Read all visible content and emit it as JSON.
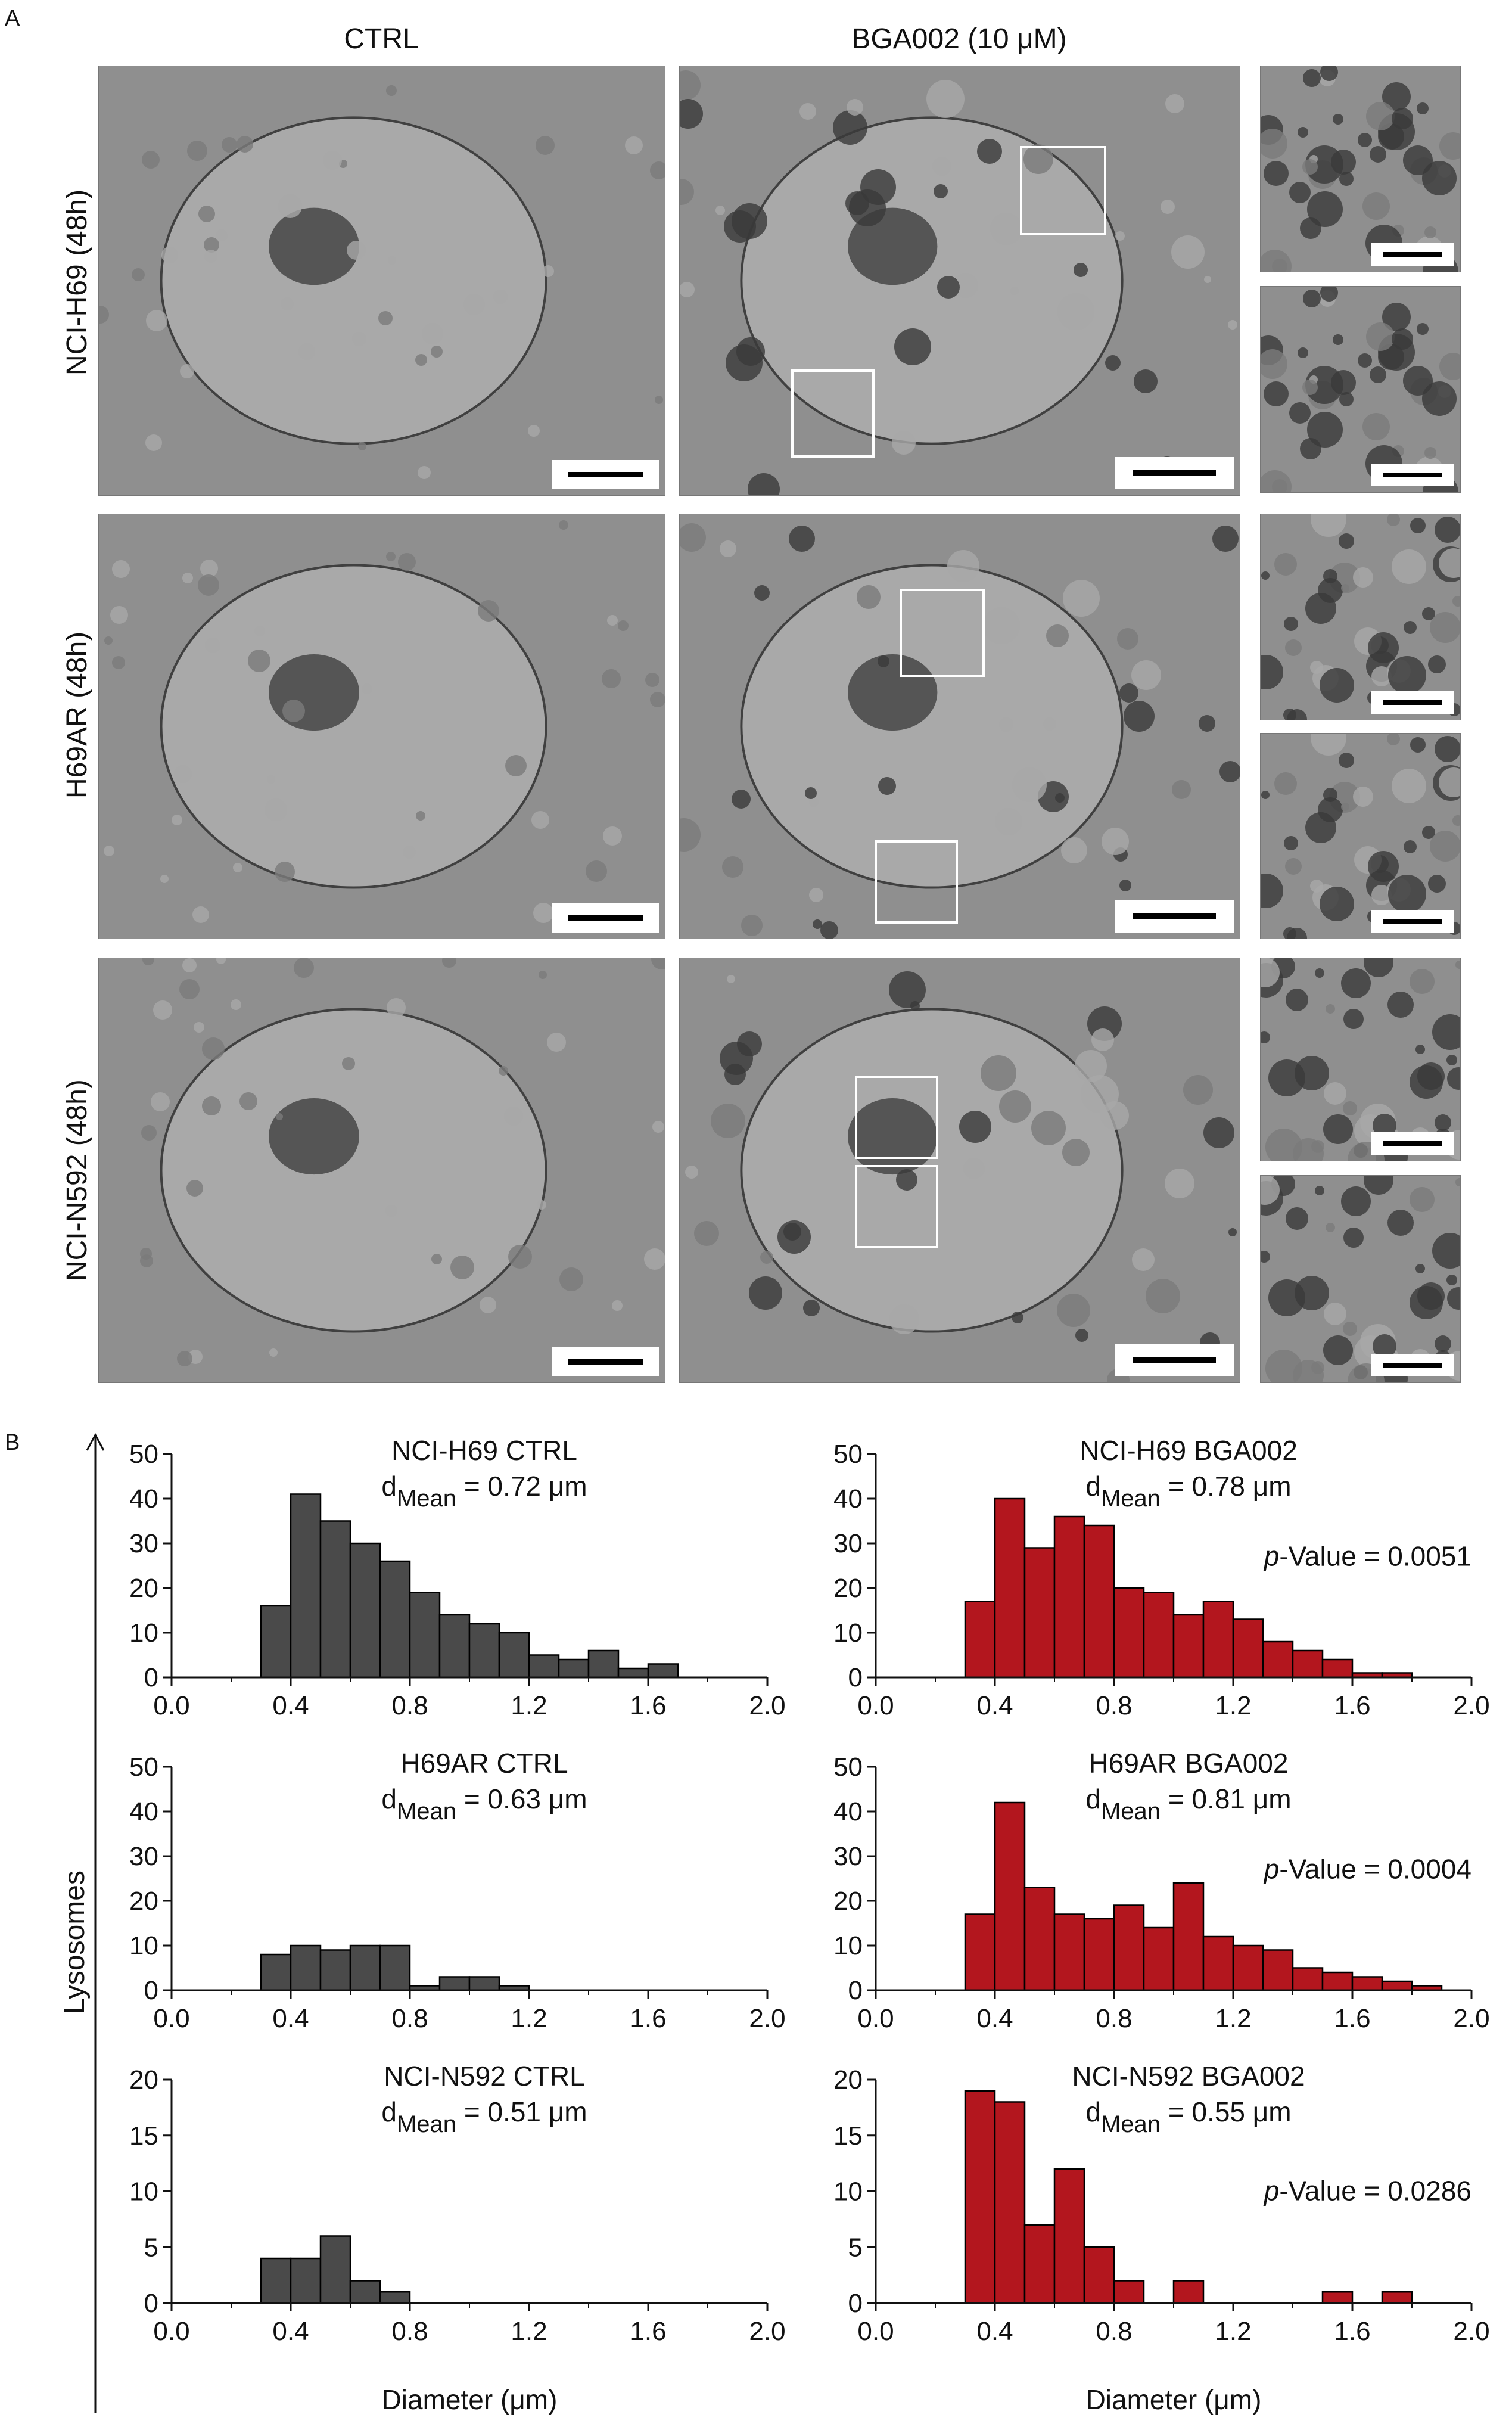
{
  "figure": {
    "panel_a_label": "A",
    "panel_b_label": "B",
    "column_labels": [
      "CTRL",
      "BGA002 (10 μM)"
    ],
    "row_labels": [
      "NCI-H69 (48h)",
      "H69AR (48h)",
      "NCI-N592 (48h)"
    ],
    "y_axis_label": "Lysosomes",
    "x_axis_label": "Diameter (μm)"
  },
  "colors": {
    "ctrl_bar": "#4a4a4a",
    "bga_bar": "#b3161e",
    "em_background": "#8f8f8f"
  },
  "chart_data": [
    {
      "type": "bar",
      "title": "NCI-H69 CTRL",
      "mean_label": "d",
      "mean_sub": "Mean",
      "mean_value": "= 0.72 μm",
      "pvalue": "",
      "bin_edges": [
        0.3,
        0.4,
        0.5,
        0.6,
        0.7,
        0.8,
        0.9,
        1.0,
        1.1,
        1.2,
        1.3,
        1.4,
        1.5,
        1.6,
        1.7
      ],
      "values": [
        16,
        41,
        35,
        30,
        26,
        19,
        14,
        12,
        10,
        5,
        4,
        6,
        2,
        3
      ],
      "xlim": [
        0.0,
        2.0
      ],
      "ylim": [
        0,
        50
      ],
      "xticks": [
        "0.0",
        "0.4",
        "0.8",
        "1.2",
        "1.6",
        "2.0"
      ],
      "yticks": [
        "0",
        "10",
        "20",
        "30",
        "40",
        "50"
      ],
      "color": "ctrl"
    },
    {
      "type": "bar",
      "title": "NCI-H69 BGA002",
      "mean_label": "d",
      "mean_sub": "Mean",
      "mean_value": "= 0.78 μm",
      "pvalue": "-Value = 0.0051",
      "bin_edges": [
        0.3,
        0.4,
        0.5,
        0.6,
        0.7,
        0.8,
        0.9,
        1.0,
        1.1,
        1.2,
        1.3,
        1.4,
        1.5,
        1.6,
        1.7,
        1.8
      ],
      "values": [
        17,
        40,
        29,
        36,
        34,
        20,
        19,
        14,
        17,
        13,
        8,
        6,
        4,
        1,
        1
      ],
      "xlim": [
        0.0,
        2.0
      ],
      "ylim": [
        0,
        50
      ],
      "xticks": [
        "0.0",
        "0.4",
        "0.8",
        "1.2",
        "1.6",
        "2.0"
      ],
      "yticks": [
        "0",
        "10",
        "20",
        "30",
        "40",
        "50"
      ],
      "color": "bga"
    },
    {
      "type": "bar",
      "title": "H69AR CTRL",
      "mean_label": "d",
      "mean_sub": "Mean",
      "mean_value": "= 0.63 μm",
      "pvalue": "",
      "bin_edges": [
        0.3,
        0.4,
        0.5,
        0.6,
        0.7,
        0.8,
        0.9,
        1.0,
        1.1,
        1.2
      ],
      "values": [
        8,
        10,
        9,
        10,
        10,
        1,
        3,
        3,
        1
      ],
      "xlim": [
        0.0,
        2.0
      ],
      "ylim": [
        0,
        50
      ],
      "xticks": [
        "0.0",
        "0.4",
        "0.8",
        "1.2",
        "1.6",
        "2.0"
      ],
      "yticks": [
        "0",
        "10",
        "20",
        "30",
        "40",
        "50"
      ],
      "color": "ctrl"
    },
    {
      "type": "bar",
      "title": "H69AR BGA002",
      "mean_label": "d",
      "mean_sub": "Mean",
      "mean_value": "= 0.81 μm",
      "pvalue": "-Value = 0.0004",
      "bin_edges": [
        0.3,
        0.4,
        0.5,
        0.6,
        0.7,
        0.8,
        0.9,
        1.0,
        1.1,
        1.2,
        1.3,
        1.4,
        1.5,
        1.6,
        1.7,
        1.8,
        1.9
      ],
      "values": [
        17,
        42,
        23,
        17,
        16,
        19,
        14,
        24,
        12,
        10,
        9,
        5,
        4,
        3,
        2,
        1
      ],
      "xlim": [
        0.0,
        2.0
      ],
      "ylim": [
        0,
        50
      ],
      "xticks": [
        "0.0",
        "0.4",
        "0.8",
        "1.2",
        "1.6",
        "2.0"
      ],
      "yticks": [
        "0",
        "10",
        "20",
        "30",
        "40",
        "50"
      ],
      "color": "bga"
    },
    {
      "type": "bar",
      "title": "NCI-N592 CTRL",
      "mean_label": "d",
      "mean_sub": "Mean",
      "mean_value": "= 0.51 μm",
      "pvalue": "",
      "bin_edges": [
        0.3,
        0.4,
        0.5,
        0.6,
        0.7,
        0.8
      ],
      "values": [
        4,
        4,
        6,
        2,
        1
      ],
      "xlim": [
        0.0,
        2.0
      ],
      "ylim": [
        0,
        20
      ],
      "xticks": [
        "0.0",
        "0.4",
        "0.8",
        "1.2",
        "1.6",
        "2.0"
      ],
      "yticks": [
        "0",
        "5",
        "10",
        "15",
        "20"
      ],
      "color": "ctrl"
    },
    {
      "type": "bar",
      "title": "NCI-N592 BGA002",
      "mean_label": "d",
      "mean_sub": "Mean",
      "mean_value": "= 0.55 μm",
      "pvalue": "-Value = 0.0286",
      "bin_edges": [
        0.3,
        0.4,
        0.5,
        0.6,
        0.7,
        0.8,
        0.9,
        1.0,
        1.1,
        1.2,
        1.3,
        1.4,
        1.5,
        1.6,
        1.7,
        1.8
      ],
      "values": [
        19,
        18,
        7,
        12,
        5,
        2,
        0,
        2,
        0,
        0,
        0,
        0,
        1,
        0,
        1
      ],
      "xlim": [
        0.0,
        2.0
      ],
      "ylim": [
        0,
        20
      ],
      "xticks": [
        "0.0",
        "0.4",
        "0.8",
        "1.2",
        "1.6",
        "2.0"
      ],
      "yticks": [
        "0",
        "5",
        "10",
        "15",
        "20"
      ],
      "color": "bga"
    }
  ]
}
